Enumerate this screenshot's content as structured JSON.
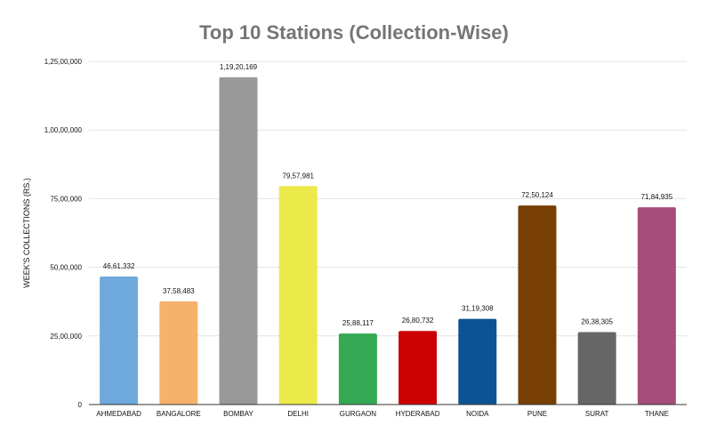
{
  "chart_data": {
    "type": "bar",
    "title": "Top 10 Stations (Collection-Wise)",
    "xlabel": "",
    "ylabel": "WEEK'S COLLECTIONS (RS.)",
    "ylim": [
      0,
      12500000
    ],
    "yticks": [
      0,
      2500000,
      5000000,
      7500000,
      10000000,
      12500000
    ],
    "ytick_labels": [
      "0",
      "25,00,000",
      "50,00,000",
      "75,00,000",
      "1,00,00,000",
      "1,25,00,000"
    ],
    "categories": [
      "AHMEDABAD",
      "BANGALORE",
      "BOMBAY",
      "DELHI",
      "GURGAON",
      "HYDERABAD",
      "NOIDA",
      "PUNE",
      "SURAT",
      "THANE"
    ],
    "values": [
      4661332,
      3758483,
      11920169,
      7957981,
      2588117,
      2680732,
      3119308,
      7250124,
      2638305,
      7184935
    ],
    "value_labels": [
      "46,61,332",
      "37,58,483",
      "1,19,20,169",
      "79,57,981",
      "25,88,117",
      "26,80,732",
      "31,19,308",
      "72,50,124",
      "26,38,305",
      "71,84,935"
    ],
    "colors": [
      "#6fa8dc",
      "#f6b26b",
      "#999999",
      "#ebe84a",
      "#34a853",
      "#cc0000",
      "#0b5394",
      "#783f04",
      "#666666",
      "#a64d79"
    ],
    "grid": true,
    "legend": "none"
  }
}
